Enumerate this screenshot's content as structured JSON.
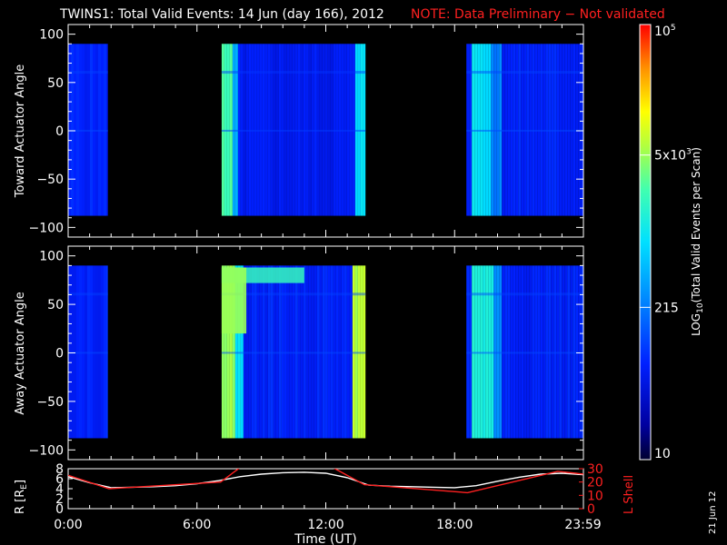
{
  "header": {
    "title": "TWINS1: Total Valid Events: 14 Jun (day 166), 2012",
    "note": "NOTE: Data Preliminary − Not validated"
  },
  "side_stamp": "21 Jun 12",
  "colors": {
    "background": "#000000",
    "foreground": "#ffffff",
    "note": "#ff2020",
    "lshell_line": "#ff2020",
    "r_line": "#ffffff"
  },
  "chart_data": [
    {
      "type": "heatmap",
      "panel": "toward",
      "ylabel": "Toward Actuator Angle",
      "ylim": [
        -110,
        110
      ],
      "yticks": [
        "100",
        "50",
        "0",
        "−50",
        "−100"
      ],
      "xlim": [
        0,
        24
      ],
      "data_angle_range": [
        -88,
        90
      ],
      "blocks": [
        {
          "start": 0.0,
          "end": 1.85,
          "level": 0.22
        },
        {
          "start": 7.15,
          "end": 13.85,
          "level": 0.2,
          "edges": [
            {
              "start": 7.15,
              "end": 7.6,
              "level": 0.62
            },
            {
              "start": 7.6,
              "end": 7.9,
              "level": 0.42
            },
            {
              "start": 13.3,
              "end": 13.85,
              "level": 0.5
            }
          ]
        },
        {
          "start": 18.55,
          "end": 24.0,
          "level": 0.22,
          "edges": [
            {
              "start": 18.8,
              "end": 19.6,
              "level": 0.5
            },
            {
              "start": 19.6,
              "end": 20.2,
              "level": 0.36
            }
          ]
        }
      ]
    },
    {
      "type": "heatmap",
      "panel": "away",
      "ylabel": "Away Actuator Angle",
      "ylim": [
        -110,
        110
      ],
      "yticks": [
        "100",
        "50",
        "0",
        "−50",
        "−100"
      ],
      "xlim": [
        0,
        24
      ],
      "data_angle_range": [
        -88,
        90
      ],
      "blocks": [
        {
          "start": 0.0,
          "end": 1.85,
          "level": 0.22
        },
        {
          "start": 7.15,
          "end": 13.85,
          "level": 0.22,
          "edges": [
            {
              "start": 7.15,
              "end": 7.75,
              "level": 0.7
            },
            {
              "start": 7.75,
              "end": 8.1,
              "level": 0.5
            },
            {
              "start": 13.2,
              "end": 13.85,
              "level": 0.72
            }
          ]
        },
        {
          "start": 18.55,
          "end": 24.0,
          "level": 0.22,
          "edges": [
            {
              "start": 18.8,
              "end": 19.7,
              "level": 0.55
            },
            {
              "start": 19.7,
              "end": 20.2,
              "level": 0.38
            }
          ]
        }
      ],
      "overlay": {
        "start": 7.15,
        "end": 11.0,
        "angle_top": 88,
        "angle_bottom": 72,
        "level": 0.6
      }
    },
    {
      "type": "line",
      "panel": "orbit",
      "ylabel": "R [R",
      "ylabel_sub": "E",
      "ylabel_end": "]",
      "y2label": "L Shell",
      "xlabel": "Time (UT)",
      "xlim": [
        0,
        24
      ],
      "ylim": [
        0,
        8
      ],
      "y2lim": [
        0,
        30
      ],
      "xticks": [
        "0:00",
        "6:00",
        "12:00",
        "18:00",
        "23:59"
      ],
      "xtick_values": [
        0,
        6,
        12,
        18,
        23.98
      ],
      "yticks": [
        "8",
        "6",
        "4",
        "2",
        "0"
      ],
      "y2ticks": [
        "30",
        "20",
        "10",
        "0"
      ],
      "series": [
        {
          "axis": "left",
          "x": [
            0,
            1,
            2,
            3,
            4,
            5,
            6,
            7,
            8,
            9,
            10,
            11,
            12,
            13,
            14,
            15,
            16,
            17,
            18,
            19,
            20,
            21,
            22,
            23,
            24
          ],
          "y": [
            6.4,
            5.2,
            4.2,
            4.3,
            4.4,
            4.6,
            5.0,
            5.6,
            6.4,
            6.9,
            7.2,
            7.3,
            7.1,
            6.2,
            4.7,
            4.5,
            4.4,
            4.3,
            4.2,
            4.6,
            5.5,
            6.3,
            6.9,
            7.1,
            6.8
          ]
        },
        {
          "axis": "right",
          "x": [
            0,
            1.9,
            7.1,
            8.1,
            12.2,
            13.8,
            18.6,
            22.8,
            24
          ],
          "y": [
            25,
            15,
            20,
            32,
            32,
            18,
            12,
            28,
            26
          ]
        }
      ]
    },
    {
      "type": "colorbar",
      "label_main": "LOG",
      "label_sub": "10",
      "label_rest": "(Total Valid Events per Scan)",
      "ticks": [
        {
          "label": "10",
          "level": 0.0
        },
        {
          "label": "215",
          "level": 0.35
        },
        {
          "label": "5x10",
          "sup": "3",
          "level": 0.7
        },
        {
          "label": "10",
          "sup": "5",
          "level": 1.0
        }
      ]
    }
  ]
}
